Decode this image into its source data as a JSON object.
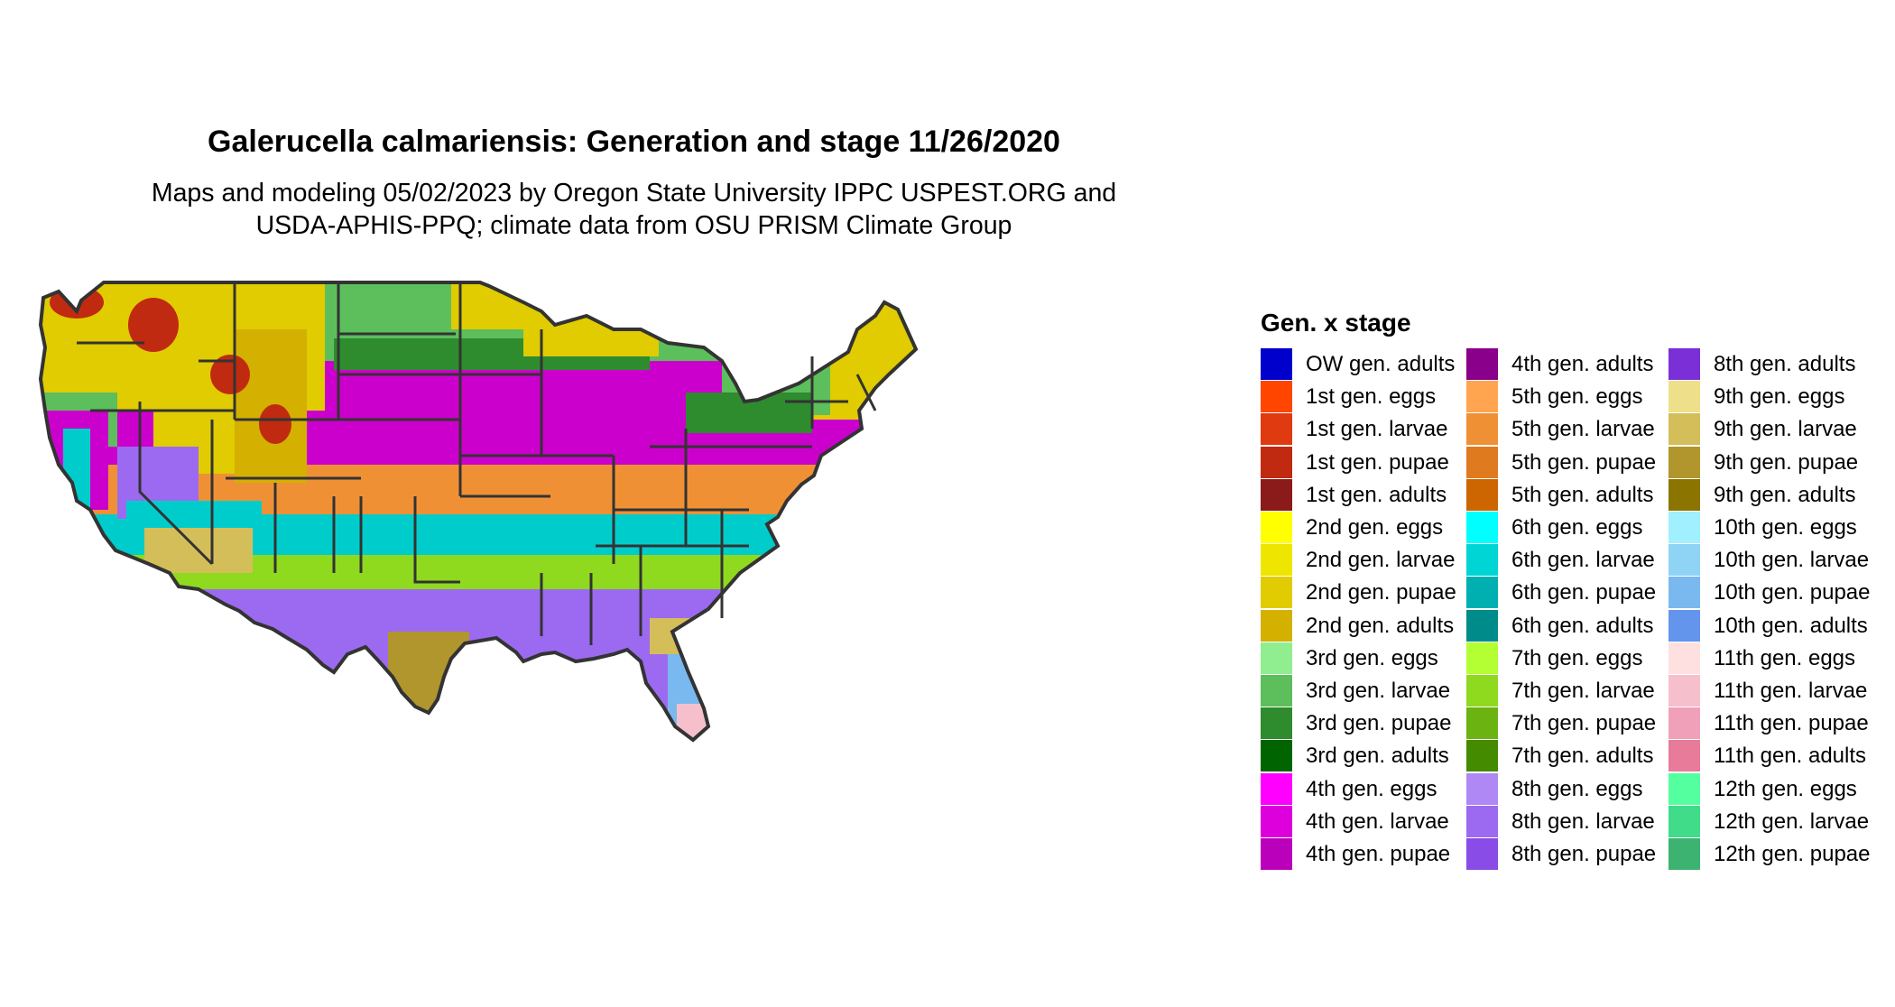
{
  "title": "Galerucella calmariensis: Generation and stage 11/26/2020",
  "subtitle_line1": "Maps and modeling 05/02/2023 by Oregon State University IPPC USPEST.ORG and",
  "subtitle_line2": "USDA-APHIS-PPQ; climate data from OSU PRISM Climate Group",
  "legend": {
    "title": "Gen. x stage",
    "columns": [
      [
        {
          "label": "OW gen. adults",
          "color": "#0000cd"
        },
        {
          "label": "1st gen. eggs",
          "color": "#ff4500"
        },
        {
          "label": "1st gen. larvae",
          "color": "#e03a10"
        },
        {
          "label": "1st gen. pupae",
          "color": "#c02a10"
        },
        {
          "label": "1st gen. adults",
          "color": "#8b1a1a"
        },
        {
          "label": "2nd gen. eggs",
          "color": "#ffff00"
        },
        {
          "label": "2nd gen. larvae",
          "color": "#eee600"
        },
        {
          "label": "2nd gen. pupae",
          "color": "#e0cc00"
        },
        {
          "label": "2nd gen. adults",
          "color": "#d4b000"
        },
        {
          "label": "3rd gen. eggs",
          "color": "#90ee90"
        },
        {
          "label": "3rd gen. larvae",
          "color": "#5cbf5c"
        },
        {
          "label": "3rd gen. pupae",
          "color": "#2e8b2e"
        },
        {
          "label": "3rd gen. adults",
          "color": "#006400"
        },
        {
          "label": "4th gen. eggs",
          "color": "#ff00ff"
        },
        {
          "label": "4th gen. larvae",
          "color": "#dd00dd"
        },
        {
          "label": "4th gen. pupae",
          "color": "#bb00bb"
        }
      ],
      [
        {
          "label": "4th gen. adults",
          "color": "#8b008b"
        },
        {
          "label": "5th gen. eggs",
          "color": "#ffa54f"
        },
        {
          "label": "5th gen. larvae",
          "color": "#f09035"
        },
        {
          "label": "5th gen. pupae",
          "color": "#e07a1f"
        },
        {
          "label": "5th gen. adults",
          "color": "#cd6600"
        },
        {
          "label": "6th gen. eggs",
          "color": "#00ffff"
        },
        {
          "label": "6th gen. larvae",
          "color": "#00d5d5"
        },
        {
          "label": "6th gen. pupae",
          "color": "#00b0b0"
        },
        {
          "label": "6th gen. adults",
          "color": "#008b8b"
        },
        {
          "label": "7th gen. eggs",
          "color": "#b3ff33"
        },
        {
          "label": "7th gen. larvae",
          "color": "#8fd91f"
        },
        {
          "label": "7th gen. pupae",
          "color": "#6bb310"
        },
        {
          "label": "7th gen. adults",
          "color": "#458b00"
        },
        {
          "label": "8th gen. eggs",
          "color": "#b088f5"
        },
        {
          "label": "8th gen. larvae",
          "color": "#9c6af0"
        },
        {
          "label": "8th gen. pupae",
          "color": "#8a4ce6"
        }
      ],
      [
        {
          "label": "8th gen. adults",
          "color": "#7b2fd6"
        },
        {
          "label": "9th gen. eggs",
          "color": "#eee08a"
        },
        {
          "label": "9th gen. larvae",
          "color": "#d4be5a"
        },
        {
          "label": "9th gen. pupae",
          "color": "#b0962d"
        },
        {
          "label": "9th gen. adults",
          "color": "#8b7500"
        },
        {
          "label": "10th gen. eggs",
          "color": "#a0f0ff"
        },
        {
          "label": "10th gen. larvae",
          "color": "#8fd3f5"
        },
        {
          "label": "10th gen. pupae",
          "color": "#7ab8f0"
        },
        {
          "label": "10th gen. adults",
          "color": "#6495ed"
        },
        {
          "label": "11th gen. eggs",
          "color": "#ffe0e0"
        },
        {
          "label": "11th gen. larvae",
          "color": "#f5c0cc"
        },
        {
          "label": "11th gen. pupae",
          "color": "#f0a0b8"
        },
        {
          "label": "11th gen. adults",
          "color": "#e87a9a"
        },
        {
          "label": "12th gen. eggs",
          "color": "#54ff9f"
        },
        {
          "label": "12th gen. larvae",
          "color": "#40dc8a"
        },
        {
          "label": "12th gen. pupae",
          "color": "#3cb371"
        }
      ]
    ]
  }
}
